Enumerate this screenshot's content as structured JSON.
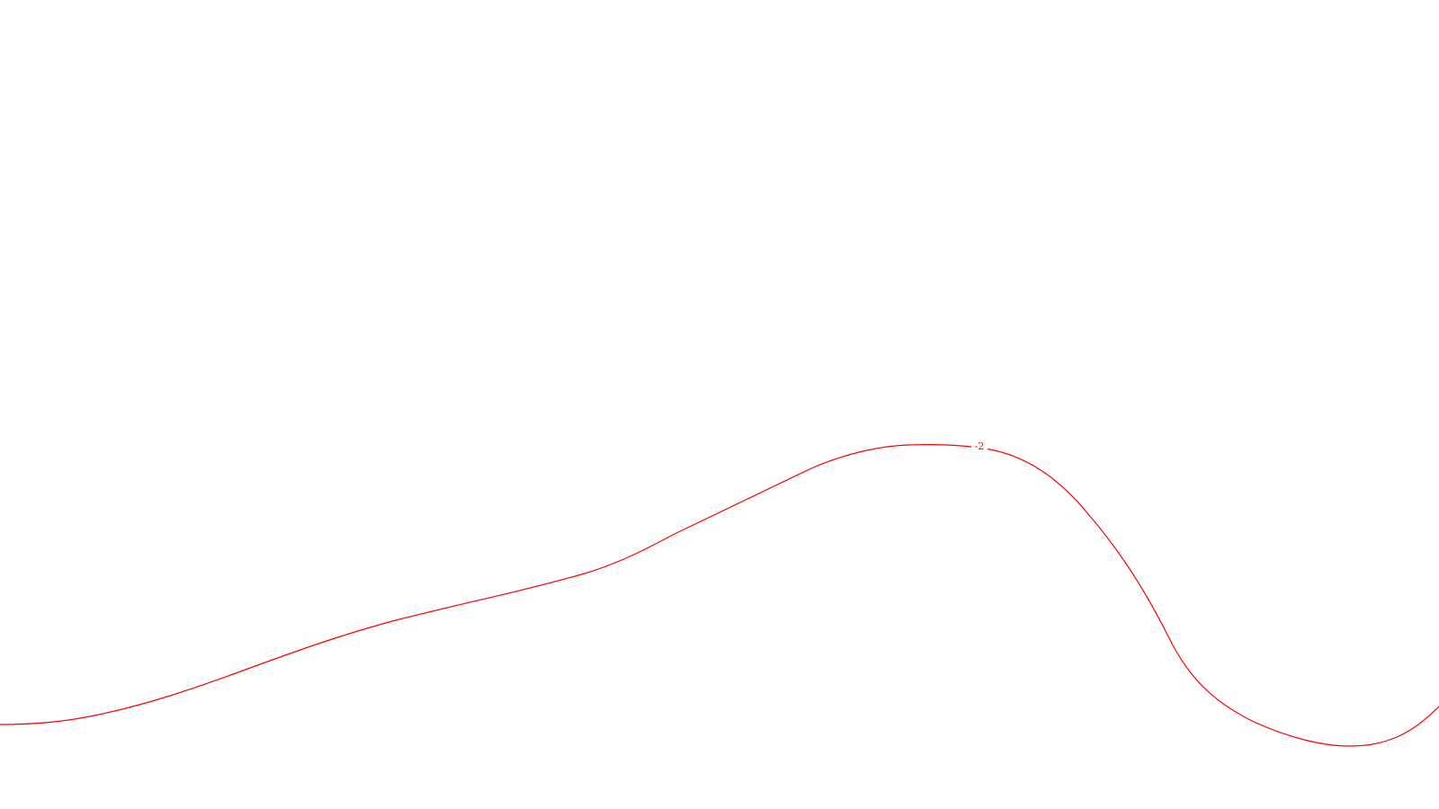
{
  "plot": {
    "background_color": "#ffffff",
    "contour": {
      "level_label": "-2",
      "color": "#ff0000"
    }
  }
}
